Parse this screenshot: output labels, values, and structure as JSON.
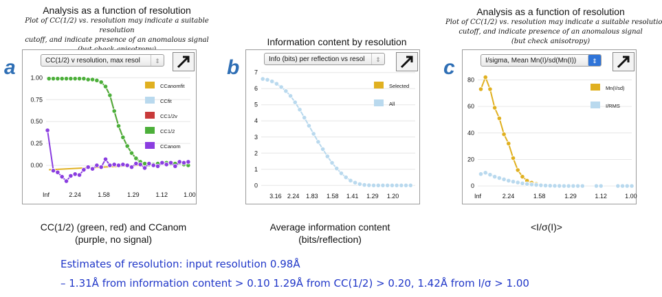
{
  "panels": [
    {
      "letter": "a",
      "header_title": "Analysis as a function of resolution",
      "header_lines": [
        "Plot of CC(1/2) vs. resolution may indicate a suitable resolution",
        "cutoff, and indicate presence of an anomalous signal",
        "(but check anisotropy)"
      ],
      "dropdown": "CC(1/2) v resolution, max resol",
      "caption_lines": [
        "CC(1/2) (green, red) and CCanom",
        "(purple, no signal)"
      ]
    },
    {
      "letter": "b",
      "header_title": "Information content by resolution",
      "dropdown": "Info (bits) per reflection vs resol",
      "caption_lines": [
        "Average information content",
        "(bits/reflection)"
      ]
    },
    {
      "letter": "c",
      "header_title": "Analysis as a function of resolution",
      "header_lines": [
        "Plot of CC(1/2) vs. resolution may indicate a suitable resolutio",
        "cutoff, and indicate presence of an anomalous signal",
        "(but check anisotropy)"
      ],
      "dropdown": "I/sigma, Mean Mn(I)/sd(Mn(I))",
      "caption_lines": [
        "<I/σ(I)>"
      ]
    }
  ],
  "estimates": {
    "line1": "Estimates of resolution: input resolution 0.98Å",
    "line2": "– 1.31Å from information content > 0.10 1.29Å from CC(1/2) > 0.20, 1.42Å from I/σ > 1.00"
  },
  "colors": {
    "yellow": "#e0b020",
    "lightblue": "#b9d9ee",
    "red": "#c83a3a",
    "green": "#4caf3a",
    "purple": "#8a3de0",
    "letter": "#2f6fb5",
    "estimate_text": "#1f36c8"
  },
  "chart_data": [
    {
      "type": "line",
      "ylim": [
        -0.25,
        1.05
      ],
      "yticks": [
        1.0,
        0.75,
        0.5,
        0.25,
        0.0
      ],
      "ytick_labels": [
        "1.00",
        "0.75",
        "0.50",
        "0.25",
        "0.00"
      ],
      "xlim": [
        0,
        0.995
      ],
      "xticks": [
        0,
        0.199,
        0.398,
        0.601,
        0.797,
        0.99
      ],
      "xtick_labels": [
        "Inf",
        "2.24",
        "1.58",
        "1.29",
        "1.12",
        "1.00"
      ],
      "legend": [
        "CCanomfit",
        "CCfit",
        "CC1/2v",
        "CC1/2",
        "CCanom"
      ],
      "legend_colors": [
        "#e0b020",
        "#b9d9ee",
        "#c83a3a",
        "#4caf3a",
        "#8a3de0"
      ],
      "series": [
        {
          "name": "CCanomfit",
          "color": "#e0b020",
          "x": [
            0.02,
            0.99
          ],
          "values": [
            -0.05,
            0.03
          ],
          "markers": false
        },
        {
          "name": "CC1/2v",
          "color": "#c83a3a",
          "x": [
            0.02,
            0.05,
            0.08,
            0.11,
            0.14,
            0.17,
            0.2,
            0.23,
            0.26,
            0.29,
            0.32,
            0.35,
            0.38,
            0.41,
            0.44,
            0.47,
            0.5,
            0.53,
            0.56,
            0.59,
            0.62,
            0.65,
            0.68,
            0.71,
            0.74,
            0.77,
            0.8,
            0.83,
            0.86,
            0.89,
            0.92,
            0.95,
            0.98
          ],
          "values": [
            0.99,
            0.99,
            0.99,
            0.99,
            0.99,
            0.99,
            0.99,
            0.99,
            0.99,
            0.98,
            0.98,
            0.97,
            0.95,
            0.9,
            0.8,
            0.62,
            0.45,
            0.32,
            0.22,
            0.14,
            0.08,
            0.04,
            0.02,
            0.01,
            0.01,
            0.02,
            0.03,
            0.03,
            0.02,
            0.02,
            0.03,
            0.01,
            0.0
          ],
          "markers": true
        },
        {
          "name": "CC1/2",
          "color": "#4caf3a",
          "x": [
            0.02,
            0.05,
            0.08,
            0.11,
            0.14,
            0.17,
            0.2,
            0.23,
            0.26,
            0.29,
            0.32,
            0.35,
            0.38,
            0.41,
            0.44,
            0.47,
            0.5,
            0.53,
            0.56,
            0.59,
            0.62,
            0.65,
            0.68,
            0.71,
            0.74,
            0.77,
            0.8,
            0.83,
            0.86,
            0.89,
            0.92,
            0.95,
            0.98
          ],
          "values": [
            0.99,
            0.99,
            0.99,
            0.99,
            0.99,
            0.99,
            0.99,
            0.99,
            0.99,
            0.98,
            0.98,
            0.97,
            0.95,
            0.9,
            0.8,
            0.62,
            0.45,
            0.32,
            0.22,
            0.14,
            0.08,
            0.04,
            0.02,
            0.01,
            0.01,
            0.02,
            0.03,
            0.03,
            0.02,
            0.02,
            0.03,
            0.01,
            0.0
          ],
          "markers": true
        },
        {
          "name": "CCanom",
          "color": "#8a3de0",
          "x": [
            0.01,
            0.05,
            0.08,
            0.11,
            0.14,
            0.17,
            0.2,
            0.23,
            0.26,
            0.29,
            0.32,
            0.35,
            0.38,
            0.41,
            0.44,
            0.47,
            0.5,
            0.53,
            0.56,
            0.59,
            0.62,
            0.65,
            0.68,
            0.71,
            0.74,
            0.77,
            0.8,
            0.83,
            0.86,
            0.89,
            0.92,
            0.95,
            0.98
          ],
          "values": [
            0.4,
            -0.06,
            -0.08,
            -0.13,
            -0.18,
            -0.12,
            -0.1,
            -0.11,
            -0.05,
            -0.02,
            -0.04,
            0.0,
            -0.02,
            0.07,
            0.0,
            0.01,
            0.0,
            0.01,
            0.0,
            -0.02,
            0.02,
            0.01,
            -0.03,
            0.02,
            0.0,
            -0.01,
            0.03,
            0.01,
            0.03,
            -0.01,
            0.04,
            0.03,
            0.04
          ],
          "markers": true
        }
      ]
    },
    {
      "type": "line",
      "ylim": [
        -0.2,
        7.2
      ],
      "yticks": [
        0,
        1,
        2,
        3,
        4,
        5,
        6,
        7
      ],
      "ytick_labels": [
        "0",
        "1",
        "2",
        "3",
        "4",
        "5",
        "6",
        "7"
      ],
      "xlim": [
        0,
        1.0
      ],
      "xticks": [
        0.093,
        0.208,
        0.33,
        0.463,
        0.592,
        0.723,
        0.855
      ],
      "xtick_labels": [
        "3.16",
        "2.24",
        "1.83",
        "1.58",
        "1.41",
        "1.29",
        "1.20"
      ],
      "legend": [
        "Selected",
        "All"
      ],
      "legend_colors": [
        "#e0b020",
        "#b9d9ee"
      ],
      "series": [
        {
          "name": "All",
          "color": "#b9d9ee",
          "x": [
            0.01,
            0.04,
            0.07,
            0.1,
            0.13,
            0.16,
            0.19,
            0.22,
            0.25,
            0.28,
            0.31,
            0.34,
            0.37,
            0.4,
            0.43,
            0.46,
            0.49,
            0.52,
            0.55,
            0.58,
            0.61,
            0.64,
            0.67,
            0.7,
            0.73,
            0.76,
            0.79,
            0.82,
            0.85,
            0.88,
            0.91,
            0.94,
            0.97
          ],
          "values": [
            6.6,
            6.55,
            6.45,
            6.3,
            6.1,
            5.85,
            5.55,
            5.15,
            4.7,
            4.2,
            3.7,
            3.2,
            2.7,
            2.25,
            1.8,
            1.4,
            1.05,
            0.75,
            0.5,
            0.3,
            0.17,
            0.08,
            0.03,
            0.01,
            0.0,
            0.0,
            0.0,
            0.0,
            0.0,
            0.0,
            0.0,
            0.0,
            0.0
          ],
          "markers": true
        }
      ]
    },
    {
      "type": "line",
      "ylim": [
        -2,
        88
      ],
      "yticks": [
        0,
        20,
        40,
        60,
        80
      ],
      "ytick_labels": [
        "0",
        "20",
        "40",
        "60",
        "80"
      ],
      "xlim": [
        0,
        1.0
      ],
      "xticks": [
        0.0,
        0.199,
        0.4,
        0.603,
        0.8,
        0.995
      ],
      "xtick_labels": [
        "Inf",
        "2.24",
        "1.58",
        "1.29",
        "1.12",
        "1.00"
      ],
      "legend": [
        "Mn(I/sd)",
        "I/RMS"
      ],
      "legend_colors": [
        "#e0b020",
        "#b9d9ee"
      ],
      "series": [
        {
          "name": "Mn(I/sd)",
          "color": "#e0b020",
          "x": [
            0.02,
            0.05,
            0.08,
            0.11,
            0.14,
            0.17,
            0.2,
            0.23,
            0.26,
            0.29,
            0.32,
            0.35,
            0.38,
            0.41,
            0.44
          ],
          "values": [
            73,
            82,
            73,
            59,
            51,
            39,
            32,
            21,
            12,
            7,
            4,
            2.5,
            1.5,
            0.8,
            0.4
          ],
          "markers": true
        },
        {
          "name": "I/RMS",
          "color": "#b9d9ee",
          "x": [
            0.02,
            0.05,
            0.08,
            0.11,
            0.14,
            0.17,
            0.2,
            0.23,
            0.26,
            0.29,
            0.32,
            0.35,
            0.38,
            0.41,
            0.44,
            0.47,
            0.5,
            0.53,
            0.56,
            0.59,
            0.62,
            0.65,
            0.68
          ],
          "values": [
            9,
            10,
            8.5,
            7,
            6,
            5,
            4,
            3.3,
            2.6,
            2,
            1.5,
            1.1,
            0.8,
            0.5,
            0.3,
            0.2,
            0.1,
            0.05,
            0,
            0,
            0,
            0,
            0
          ],
          "markers": true
        },
        {
          "name": "I/RMS-tail",
          "color": "#b9d9ee",
          "x": [
            0.77,
            0.8
          ],
          "values": [
            0,
            0
          ],
          "markers": true
        },
        {
          "name": "I/RMS-tail2",
          "color": "#b9d9ee",
          "x": [
            0.91,
            0.94,
            0.97,
            1.0
          ],
          "values": [
            0,
            0,
            0,
            0
          ],
          "markers": true
        }
      ]
    }
  ]
}
